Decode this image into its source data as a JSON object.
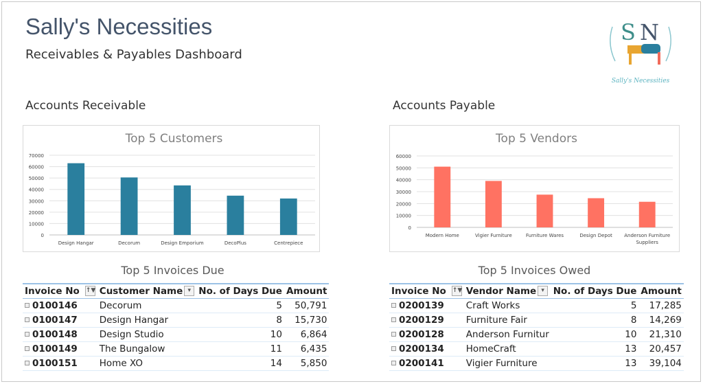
{
  "header": {
    "title": "Sally's Necessities",
    "subtitle": "Receivables & Payables Dashboard",
    "logo_text": "Sally's Necessities"
  },
  "receivable": {
    "section": "Accounts Receivable",
    "table_title": "Top 5 Invoices Due",
    "columns": [
      "Invoice No",
      "Customer Name",
      "No. of Days Due",
      "Amount"
    ],
    "rows": [
      [
        "0100146",
        "Decorum",
        "5",
        "50,791"
      ],
      [
        "0100147",
        "Design Hangar",
        "8",
        "15,730"
      ],
      [
        "0100148",
        "Design Studio",
        "10",
        "6,864"
      ],
      [
        "0100149",
        "The Bungalow",
        "11",
        "6,435"
      ],
      [
        "0100151",
        "Home XO",
        "14",
        "5,850"
      ]
    ]
  },
  "payable": {
    "section": "Accounts Payable",
    "table_title": "Top 5 Invoices Owed",
    "columns": [
      "Invoice No",
      "Vendor Name",
      "No. of Days Due",
      "Amount"
    ],
    "rows": [
      [
        "0200139",
        "Craft Works",
        "5",
        "17,285"
      ],
      [
        "0200129",
        "Furniture Fair",
        "8",
        "14,269"
      ],
      [
        "0200128",
        "Anderson Furnitur",
        "10",
        "21,310"
      ],
      [
        "0200134",
        "HomeCraft",
        "13",
        "20,457"
      ],
      [
        "0200141",
        "Vigier Furniture",
        "13",
        "39,104"
      ]
    ]
  },
  "chart_data": [
    {
      "type": "bar",
      "title": "Top 5 Customers",
      "categories": [
        "Design Hangar",
        "Decorum",
        "Design Emporium",
        "DecoPlus",
        "Centrepiece"
      ],
      "values": [
        63000,
        50500,
        43500,
        34500,
        32000
      ],
      "ylim": [
        0,
        70000
      ],
      "yticks": [
        0,
        10000,
        20000,
        30000,
        40000,
        50000,
        60000,
        70000
      ],
      "color": "#2a7f9e",
      "grid": true
    },
    {
      "type": "bar",
      "title": "Top 5 Vendors",
      "categories": [
        "Modern Home",
        "Vigier Furniture",
        "Furniture Wares",
        "Design Depot",
        "Anderson Furniture Suppliers"
      ],
      "values": [
        51000,
        39000,
        27500,
        24500,
        21500
      ],
      "ylim": [
        0,
        60000
      ],
      "yticks": [
        0,
        10000,
        20000,
        30000,
        40000,
        50000,
        60000
      ],
      "color": "#ff7262",
      "grid": true
    }
  ]
}
